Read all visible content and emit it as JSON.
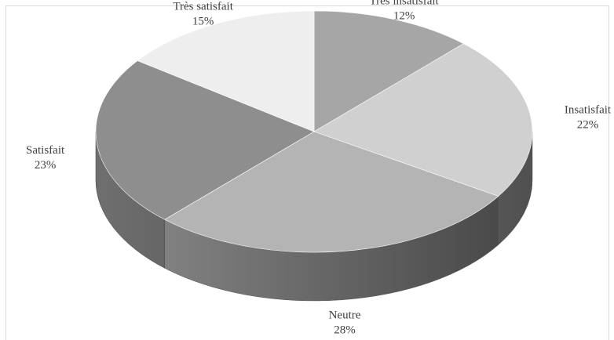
{
  "chart_data": {
    "type": "pie",
    "title": "",
    "style": "3d-exploded-none",
    "categories": [
      "Très insatisfait",
      "Insatisfait",
      "Neutre",
      "Satisfait",
      "Très satisfait"
    ],
    "values": [
      12,
      22,
      28,
      23,
      15
    ],
    "value_labels": [
      "12%",
      "22%",
      "28%",
      "23%",
      "15%"
    ],
    "colors": [
      "#a6a6a6",
      "#d0d0d0",
      "#b4b4b4",
      "#8e8e8e",
      "#eeeeee"
    ],
    "legend": "none",
    "label_placement": "outside"
  }
}
